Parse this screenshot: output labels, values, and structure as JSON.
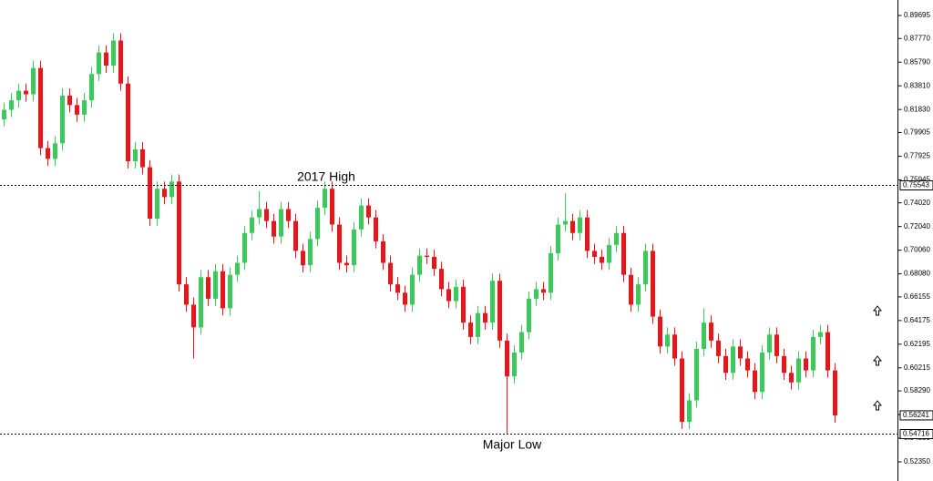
{
  "chart_data": {
    "type": "candlestick",
    "annotations": [
      "2017 High",
      "Major Low"
    ],
    "up_color": "#3cc85a",
    "down_color": "#e3171c",
    "ylim": [
      0.5075,
      0.9099
    ],
    "yticks": [
      {
        "value": 0.89695,
        "label": "0.89695"
      },
      {
        "value": 0.8777,
        "label": "0.87770"
      },
      {
        "value": 0.8579,
        "label": "0.85790"
      },
      {
        "value": 0.8381,
        "label": "0.83810"
      },
      {
        "value": 0.8183,
        "label": "0.81830"
      },
      {
        "value": 0.79905,
        "label": "0.79905"
      },
      {
        "value": 0.77925,
        "label": "0.77925"
      },
      {
        "value": 0.75945,
        "label": "0.75945"
      },
      {
        "value": 0.7402,
        "label": "0.74020"
      },
      {
        "value": 0.7204,
        "label": "0.72040"
      },
      {
        "value": 0.7006,
        "label": "0.70060"
      },
      {
        "value": 0.6808,
        "label": "0.68080"
      },
      {
        "value": 0.66155,
        "label": "0.66155"
      },
      {
        "value": 0.64175,
        "label": "0.64175"
      },
      {
        "value": 0.62195,
        "label": "0.62195"
      },
      {
        "value": 0.60215,
        "label": "0.60215"
      },
      {
        "value": 0.5829,
        "label": "0.58290"
      },
      {
        "value": 0.5631,
        "label": "0.56310"
      },
      {
        "value": 0.5433,
        "label": "0.54330"
      },
      {
        "value": 0.5235,
        "label": "0.52350"
      }
    ],
    "levels": [
      0.75543,
      0.54716
    ],
    "current_price": 0.56241,
    "open": [
      0.81,
      0.818,
      0.826,
      0.834,
      0.831,
      0.853,
      0.786,
      0.777,
      0.79,
      0.83,
      0.822,
      0.814,
      0.826,
      0.848,
      0.866,
      0.855,
      0.876,
      0.84,
      0.775,
      0.785,
      0.77,
      0.727,
      0.752,
      0.745,
      0.758,
      0.672,
      0.655,
      0.636,
      0.678,
      0.66,
      0.683,
      0.652,
      0.68,
      0.69,
      0.715,
      0.728,
      0.735,
      0.725,
      0.712,
      0.735,
      0.725,
      0.7,
      0.688,
      0.71,
      0.736,
      0.752,
      0.722,
      0.69,
      0.688,
      0.718,
      0.738,
      0.728,
      0.708,
      0.69,
      0.672,
      0.665,
      0.655,
      0.68,
      0.696,
      0.695,
      0.685,
      0.668,
      0.658,
      0.67,
      0.64,
      0.628,
      0.648,
      0.64,
      0.675,
      0.625,
      0.595,
      0.615,
      0.632,
      0.66,
      0.668,
      0.665,
      0.698,
      0.722,
      0.725,
      0.715,
      0.728,
      0.7,
      0.695,
      0.69,
      0.705,
      0.715,
      0.68,
      0.655,
      0.672,
      0.7,
      0.645,
      0.62,
      0.63,
      0.61,
      0.557,
      0.575,
      0.618,
      0.64,
      0.625,
      0.612,
      0.598,
      0.62,
      0.61,
      0.6,
      0.582,
      0.615,
      0.63,
      0.612,
      0.598,
      0.59,
      0.61,
      0.6,
      0.628,
      0.632,
      0.6
    ],
    "high": [
      0.824,
      0.832,
      0.84,
      0.84,
      0.859,
      0.859,
      0.792,
      0.796,
      0.836,
      0.836,
      0.828,
      0.832,
      0.854,
      0.872,
      0.872,
      0.882,
      0.882,
      0.846,
      0.791,
      0.791,
      0.776,
      0.758,
      0.758,
      0.764,
      0.764,
      0.678,
      0.661,
      0.684,
      0.684,
      0.689,
      0.689,
      0.686,
      0.696,
      0.721,
      0.734,
      0.75,
      0.741,
      0.731,
      0.741,
      0.741,
      0.731,
      0.706,
      0.716,
      0.742,
      0.758,
      0.758,
      0.728,
      0.696,
      0.724,
      0.744,
      0.744,
      0.734,
      0.714,
      0.696,
      0.678,
      0.671,
      0.686,
      0.702,
      0.702,
      0.701,
      0.691,
      0.674,
      0.676,
      0.676,
      0.646,
      0.654,
      0.654,
      0.681,
      0.681,
      0.631,
      0.621,
      0.638,
      0.666,
      0.674,
      0.674,
      0.704,
      0.728,
      0.748,
      0.731,
      0.734,
      0.734,
      0.706,
      0.701,
      0.711,
      0.721,
      0.721,
      0.686,
      0.678,
      0.706,
      0.706,
      0.651,
      0.636,
      0.636,
      0.616,
      0.581,
      0.624,
      0.652,
      0.646,
      0.631,
      0.618,
      0.626,
      0.626,
      0.616,
      0.606,
      0.621,
      0.636,
      0.636,
      0.618,
      0.604,
      0.616,
      0.616,
      0.634,
      0.638,
      0.638,
      0.606
    ],
    "low": [
      0.804,
      0.812,
      0.82,
      0.825,
      0.825,
      0.78,
      0.771,
      0.771,
      0.784,
      0.816,
      0.808,
      0.808,
      0.82,
      0.842,
      0.849,
      0.849,
      0.834,
      0.769,
      0.769,
      0.764,
      0.721,
      0.721,
      0.739,
      0.739,
      0.666,
      0.649,
      0.61,
      0.63,
      0.654,
      0.654,
      0.646,
      0.646,
      0.674,
      0.684,
      0.709,
      0.722,
      0.719,
      0.706,
      0.706,
      0.719,
      0.694,
      0.682,
      0.682,
      0.704,
      0.73,
      0.716,
      0.684,
      0.682,
      0.682,
      0.712,
      0.722,
      0.702,
      0.684,
      0.666,
      0.659,
      0.649,
      0.649,
      0.674,
      0.689,
      0.679,
      0.662,
      0.652,
      0.652,
      0.634,
      0.622,
      0.622,
      0.634,
      0.634,
      0.619,
      0.5472,
      0.589,
      0.609,
      0.626,
      0.654,
      0.659,
      0.659,
      0.692,
      0.716,
      0.709,
      0.709,
      0.694,
      0.689,
      0.684,
      0.684,
      0.699,
      0.674,
      0.649,
      0.649,
      0.666,
      0.639,
      0.614,
      0.614,
      0.604,
      0.551,
      0.551,
      0.569,
      0.612,
      0.619,
      0.606,
      0.592,
      0.592,
      0.604,
      0.594,
      0.576,
      0.576,
      0.609,
      0.606,
      0.592,
      0.584,
      0.584,
      0.594,
      0.594,
      0.622,
      0.594,
      0.5564
    ],
    "close": [
      0.818,
      0.826,
      0.834,
      0.831,
      0.853,
      0.786,
      0.777,
      0.79,
      0.83,
      0.822,
      0.814,
      0.826,
      0.848,
      0.866,
      0.855,
      0.876,
      0.84,
      0.775,
      0.785,
      0.77,
      0.727,
      0.752,
      0.745,
      0.758,
      0.672,
      0.655,
      0.636,
      0.678,
      0.66,
      0.683,
      0.652,
      0.68,
      0.69,
      0.715,
      0.728,
      0.735,
      0.725,
      0.712,
      0.735,
      0.725,
      0.7,
      0.688,
      0.71,
      0.736,
      0.752,
      0.722,
      0.69,
      0.688,
      0.718,
      0.738,
      0.728,
      0.708,
      0.69,
      0.672,
      0.665,
      0.655,
      0.68,
      0.696,
      0.695,
      0.685,
      0.668,
      0.658,
      0.67,
      0.64,
      0.628,
      0.648,
      0.64,
      0.675,
      0.625,
      0.595,
      0.615,
      0.632,
      0.66,
      0.668,
      0.665,
      0.698,
      0.722,
      0.725,
      0.715,
      0.728,
      0.7,
      0.695,
      0.69,
      0.705,
      0.715,
      0.68,
      0.655,
      0.672,
      0.7,
      0.645,
      0.62,
      0.63,
      0.61,
      0.557,
      0.575,
      0.618,
      0.64,
      0.625,
      0.612,
      0.598,
      0.62,
      0.61,
      0.6,
      0.582,
      0.615,
      0.63,
      0.612,
      0.598,
      0.59,
      0.61,
      0.6,
      0.628,
      0.632,
      0.6,
      0.5624
    ]
  }
}
